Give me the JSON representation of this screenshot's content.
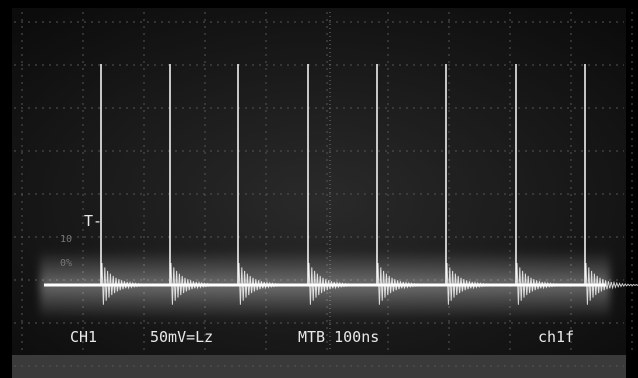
{
  "screen": {
    "trigger_marker": "T-",
    "graticule_labels": [
      "10",
      "0%"
    ],
    "readouts": {
      "channel": "CH1",
      "scale": "50mV=Lz",
      "timebase": "MTB 100ns",
      "trigger_source": "ch1f"
    }
  }
}
